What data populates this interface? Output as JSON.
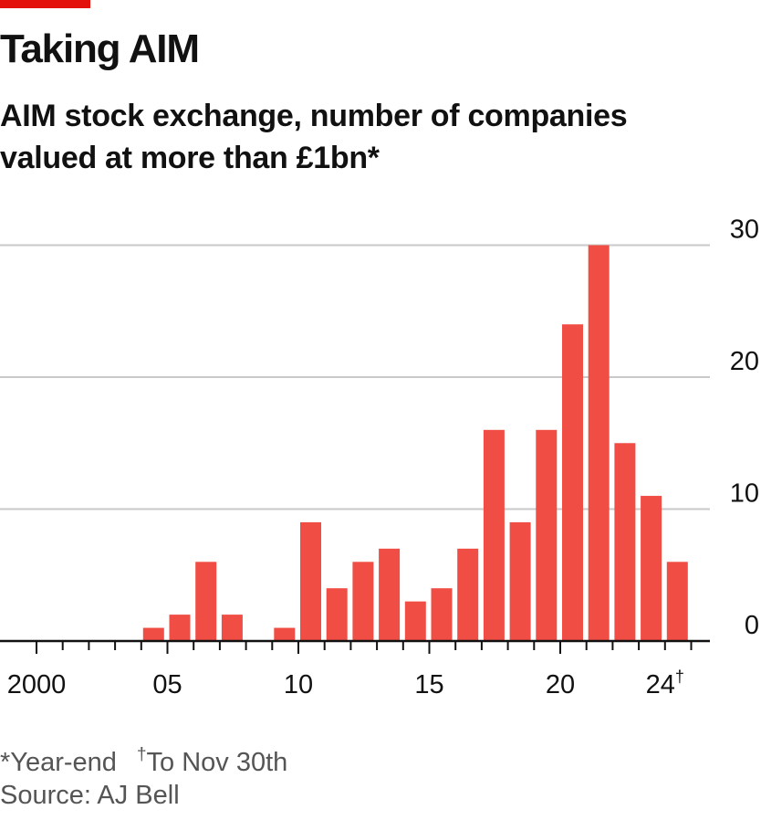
{
  "header": {
    "title": "Taking AIM",
    "subtitle_line1": "AIM stock exchange, number of companies",
    "subtitle_line2": "valued at more than £1bn*"
  },
  "footer": {
    "note1": "*Year-end",
    "note2_mark": "†",
    "note2_text": "To Nov 30th",
    "source": "Source: AJ Bell"
  },
  "colors": {
    "bar": "#f04e45",
    "accent": "#e3120b",
    "grid": "#c9c9c9",
    "axis": "#111111"
  },
  "chart_data": {
    "type": "bar",
    "title": "Taking AIM",
    "subtitle": "AIM stock exchange, number of companies valued at more than £1bn*",
    "categories": [
      2000,
      2001,
      2002,
      2003,
      2004,
      2005,
      2006,
      2007,
      2008,
      2009,
      2010,
      2011,
      2012,
      2013,
      2014,
      2015,
      2016,
      2017,
      2018,
      2019,
      2020,
      2021,
      2022,
      2023,
      2024
    ],
    "values": [
      0,
      0,
      0,
      0,
      1,
      2,
      6,
      2,
      0,
      1,
      9,
      4,
      6,
      7,
      3,
      4,
      7,
      16,
      9,
      16,
      24,
      30,
      15,
      11,
      6
    ],
    "ylim": [
      0,
      30
    ],
    "yticks": [
      0,
      10,
      20,
      30
    ],
    "y_axis_position": "right",
    "grid": true,
    "xtick_labels": [
      {
        "year": 2000,
        "label": "2000"
      },
      {
        "year": 2005,
        "label": "05"
      },
      {
        "year": 2010,
        "label": "10"
      },
      {
        "year": 2015,
        "label": "15"
      },
      {
        "year": 2020,
        "label": "20"
      },
      {
        "year": 2024,
        "label": "24",
        "mark": "†"
      }
    ]
  }
}
